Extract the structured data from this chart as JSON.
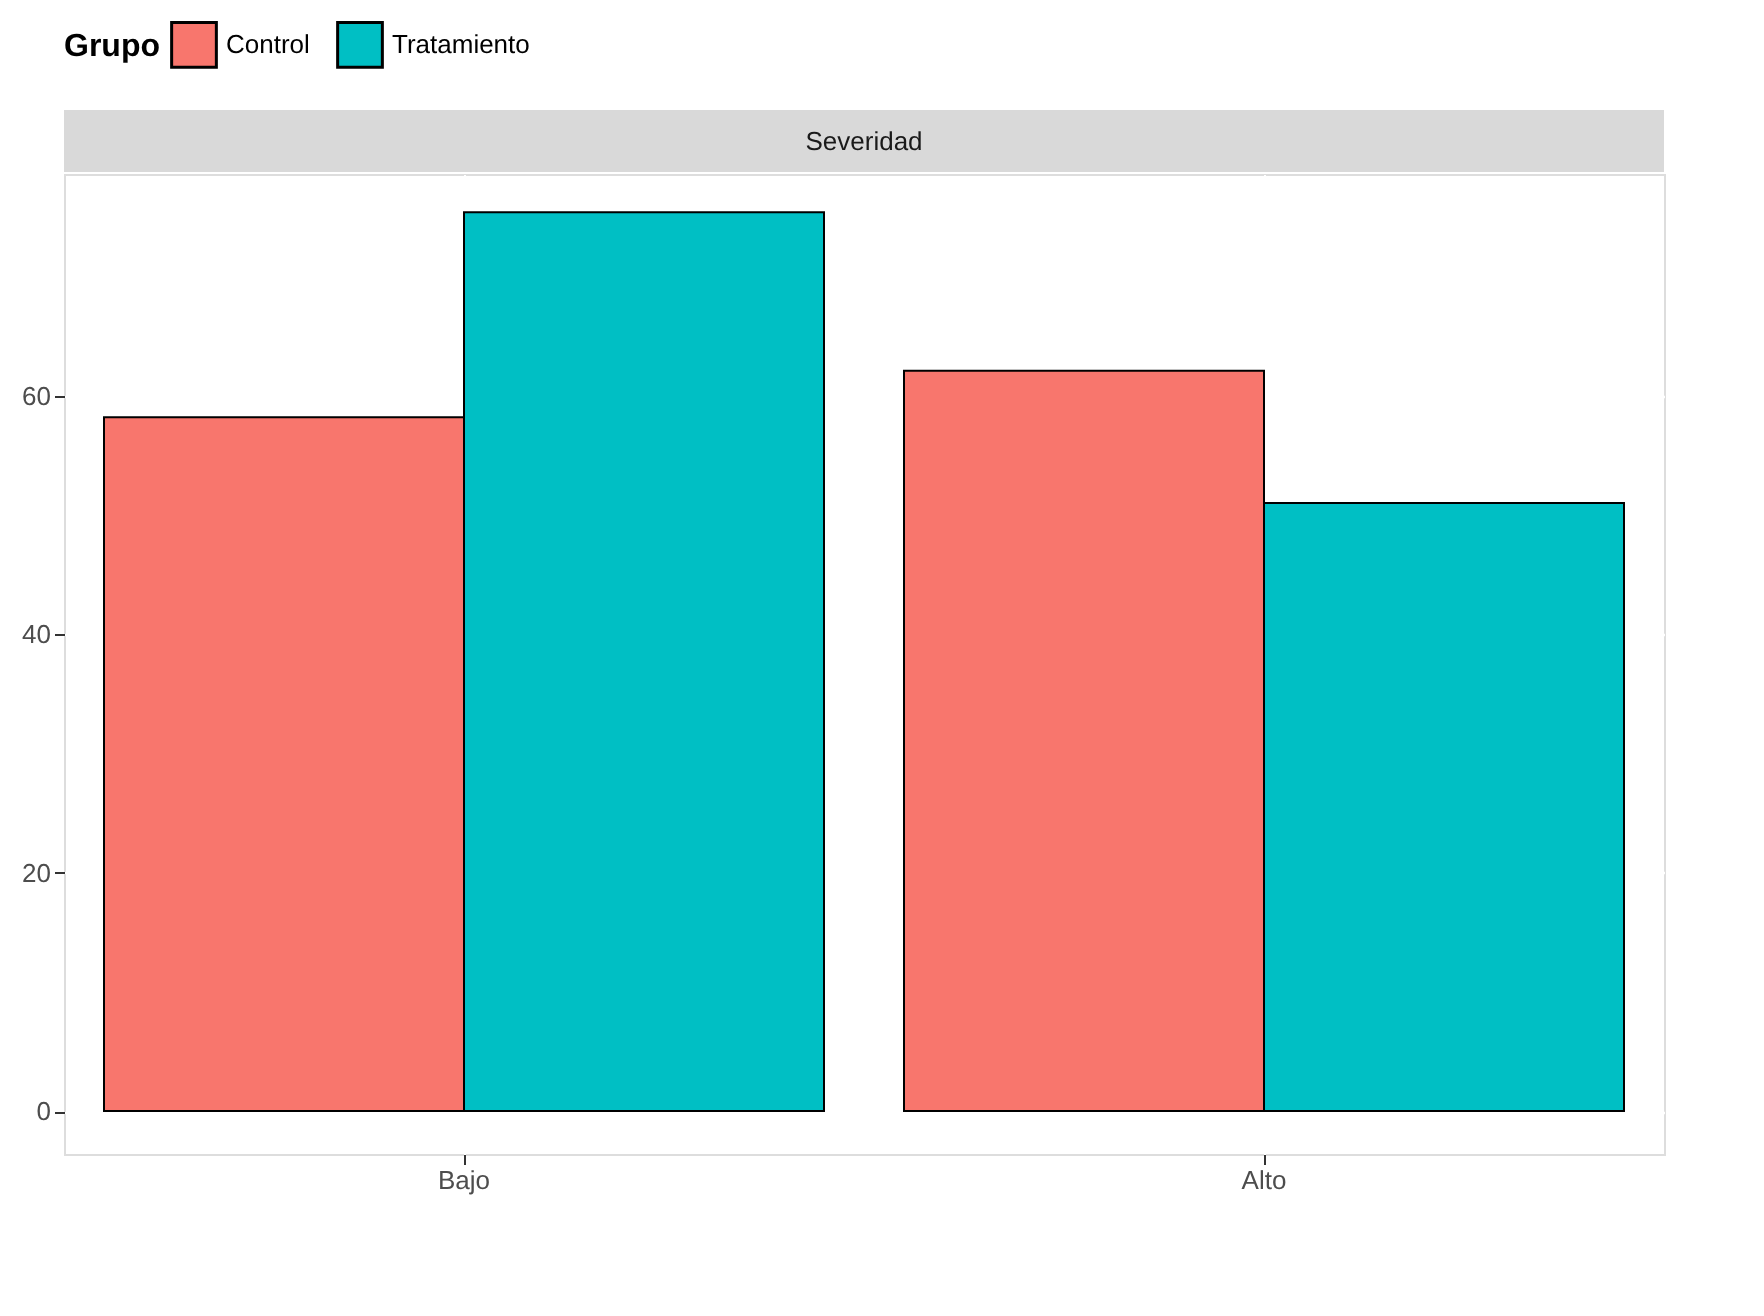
{
  "chart_data": {
    "type": "bar",
    "title": "Severidad",
    "legend_title": "Grupo",
    "categories": [
      "Bajo",
      "Alto"
    ],
    "series": [
      {
        "name": "Control",
        "color": "#f8766d",
        "values": [
          58.2,
          62.1
        ]
      },
      {
        "name": "Tratamiento",
        "color": "#00bfc4",
        "values": [
          75.4,
          51.0
        ]
      }
    ],
    "ylim": [
      -3.6,
      78.6
    ],
    "yticks": [
      0,
      20,
      40,
      60
    ],
    "grid": true,
    "legend": "top"
  }
}
